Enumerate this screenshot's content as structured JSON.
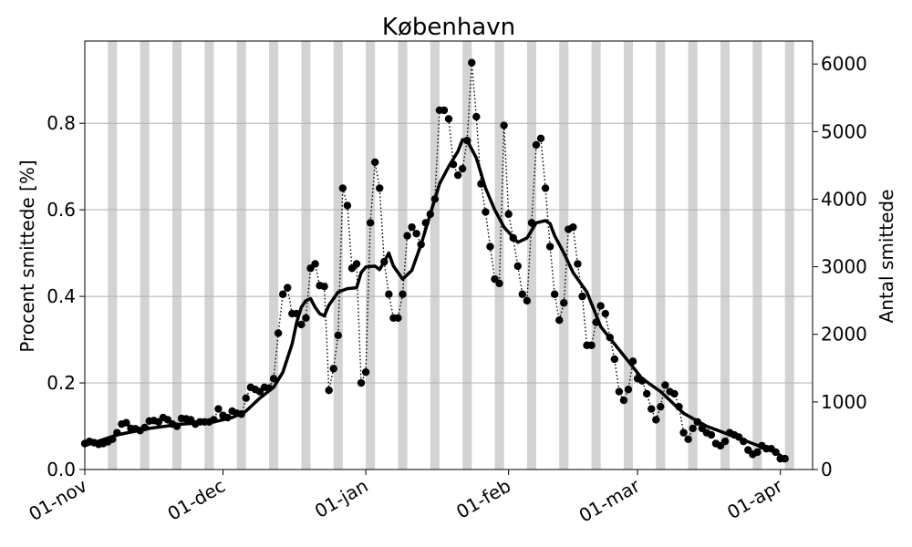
{
  "chart_data": {
    "type": "line",
    "title": "København",
    "ylabel": "Procent smittede [%]",
    "ylabel_right": "Antal smittede",
    "x_start": "2021-11-01",
    "x_end": "2022-04-08",
    "ylim": [
      0,
      0.99
    ],
    "ylim_right": [
      0,
      6340
    ],
    "yticks": [
      0.0,
      0.2,
      0.4,
      0.6,
      0.8
    ],
    "ytick_labels": [
      "0.0",
      "0.2",
      "0.4",
      "0.6",
      "0.8"
    ],
    "yticks_right": [
      0,
      1000,
      2000,
      3000,
      4000,
      5000,
      6000
    ],
    "ytick_labels_right": [
      "0",
      "1000",
      "2000",
      "3000",
      "4000",
      "5000",
      "6000"
    ],
    "xticks": [
      "2021-11-01",
      "2021-12-01",
      "2022-01-01",
      "2022-02-01",
      "2022-03-01",
      "2022-04-01"
    ],
    "xtick_labels": [
      "01-nov",
      "01-dec",
      "01-jan",
      "01-feb",
      "01-mar",
      "01-apr"
    ],
    "grid": "horizontal",
    "weekend_bands": [
      "2021-11-06",
      "2021-11-13",
      "2021-11-20",
      "2021-11-27",
      "2021-12-04",
      "2021-12-11",
      "2021-12-18",
      "2021-12-25",
      "2022-01-01",
      "2022-01-08",
      "2022-01-15",
      "2022-01-22",
      "2022-01-29",
      "2022-02-05",
      "2022-02-12",
      "2022-02-19",
      "2022-02-26",
      "2022-03-05",
      "2022-03-12",
      "2022-03-19",
      "2022-03-26",
      "2022-04-02",
      "2022-04-09"
    ],
    "series": [
      {
        "style": "daily-points-dotted",
        "color": "#000000",
        "x": [
          "2021-11-01",
          "2021-11-02",
          "2021-11-03",
          "2021-11-04",
          "2021-11-05",
          "2021-11-06",
          "2021-11-07",
          "2021-11-08",
          "2021-11-09",
          "2021-11-10",
          "2021-11-11",
          "2021-11-12",
          "2021-11-13",
          "2021-11-14",
          "2021-11-15",
          "2021-11-16",
          "2021-11-17",
          "2021-11-18",
          "2021-11-19",
          "2021-11-20",
          "2021-11-21",
          "2021-11-22",
          "2021-11-23",
          "2021-11-24",
          "2021-11-25",
          "2021-11-26",
          "2021-11-27",
          "2021-11-28",
          "2021-11-29",
          "2021-11-30",
          "2021-12-01",
          "2021-12-02",
          "2021-12-03",
          "2021-12-04",
          "2021-12-05",
          "2021-12-06",
          "2021-12-07",
          "2021-12-08",
          "2021-12-09",
          "2021-12-10",
          "2021-12-11",
          "2021-12-12",
          "2021-12-13",
          "2021-12-14",
          "2021-12-15",
          "2021-12-16",
          "2021-12-17",
          "2021-12-18",
          "2021-12-19",
          "2021-12-20",
          "2021-12-21",
          "2021-12-22",
          "2021-12-23",
          "2021-12-24",
          "2021-12-25",
          "2021-12-26",
          "2021-12-27",
          "2021-12-28",
          "2021-12-29",
          "2021-12-30",
          "2021-12-31",
          "2022-01-01",
          "2022-01-02",
          "2022-01-03",
          "2022-01-04",
          "2022-01-05",
          "2022-01-06",
          "2022-01-07",
          "2022-01-08",
          "2022-01-09",
          "2022-01-10",
          "2022-01-11",
          "2022-01-12",
          "2022-01-13",
          "2022-01-14",
          "2022-01-15",
          "2022-01-16",
          "2022-01-17",
          "2022-01-18",
          "2022-01-19",
          "2022-01-20",
          "2022-01-21",
          "2022-01-22",
          "2022-01-23",
          "2022-01-24",
          "2022-01-25",
          "2022-01-26",
          "2022-01-27",
          "2022-01-28",
          "2022-01-29",
          "2022-01-30",
          "2022-01-31",
          "2022-02-01",
          "2022-02-02",
          "2022-02-03",
          "2022-02-04",
          "2022-02-05",
          "2022-02-06",
          "2022-02-07",
          "2022-02-08",
          "2022-02-09",
          "2022-02-10",
          "2022-02-11",
          "2022-02-12",
          "2022-02-13",
          "2022-02-14",
          "2022-02-15",
          "2022-02-16",
          "2022-02-17",
          "2022-02-18",
          "2022-02-19",
          "2022-02-20",
          "2022-02-21",
          "2022-02-22",
          "2022-02-23",
          "2022-02-24",
          "2022-02-25",
          "2022-02-26",
          "2022-02-27",
          "2022-02-28",
          "2022-03-01",
          "2022-03-02",
          "2022-03-03",
          "2022-03-04",
          "2022-03-05",
          "2022-03-06",
          "2022-03-07",
          "2022-03-08",
          "2022-03-09",
          "2022-03-10",
          "2022-03-11",
          "2022-03-12",
          "2022-03-13",
          "2022-03-14",
          "2022-03-15",
          "2022-03-16",
          "2022-03-17",
          "2022-03-18",
          "2022-03-19",
          "2022-03-20",
          "2022-03-21",
          "2022-03-22",
          "2022-03-23",
          "2022-03-24",
          "2022-03-25",
          "2022-03-26",
          "2022-03-27",
          "2022-03-28",
          "2022-03-29",
          "2022-03-30",
          "2022-03-31",
          "2022-04-01",
          "2022-04-02"
        ],
        "values": [
          0.06,
          0.065,
          0.062,
          0.058,
          0.06,
          0.064,
          0.07,
          0.085,
          0.105,
          0.108,
          0.095,
          0.094,
          0.09,
          0.097,
          0.112,
          0.113,
          0.11,
          0.12,
          0.115,
          0.105,
          0.1,
          0.118,
          0.117,
          0.115,
          0.105,
          0.11,
          0.11,
          0.11,
          0.115,
          0.14,
          0.125,
          0.12,
          0.135,
          0.13,
          0.128,
          0.165,
          0.19,
          0.185,
          0.18,
          0.19,
          0.188,
          0.21,
          0.315,
          0.405,
          0.42,
          0.36,
          0.36,
          0.335,
          0.35,
          0.465,
          0.475,
          0.425,
          0.423,
          0.183,
          0.233,
          0.31,
          0.65,
          0.61,
          0.465,
          0.475,
          0.2,
          0.225,
          0.57,
          0.71,
          0.65,
          0.48,
          0.405,
          0.35,
          0.35,
          0.405,
          0.54,
          0.56,
          0.545,
          0.52,
          0.57,
          0.59,
          0.625,
          0.83,
          0.83,
          0.81,
          0.705,
          0.68,
          0.695,
          0.76,
          0.94,
          0.815,
          0.66,
          0.595,
          0.515,
          0.44,
          0.43,
          0.795,
          0.59,
          0.535,
          0.47,
          0.405,
          0.39,
          0.57,
          0.75,
          0.765,
          0.65,
          0.515,
          0.405,
          0.345,
          0.385,
          0.555,
          0.56,
          0.475,
          0.4,
          0.287,
          0.287,
          0.34,
          0.378,
          0.36,
          0.305,
          0.255,
          0.18,
          0.16,
          0.185,
          0.25,
          0.21,
          0.205,
          0.175,
          0.14,
          0.115,
          0.145,
          0.195,
          0.18,
          0.175,
          0.145,
          0.085,
          0.07,
          0.095,
          0.11,
          0.095,
          0.085,
          0.08,
          0.06,
          0.055,
          0.065,
          0.085,
          0.08,
          0.075,
          0.065,
          0.045,
          0.035,
          0.04,
          0.055,
          0.048,
          0.048,
          0.04,
          0.025,
          0.025
        ]
      },
      {
        "style": "smoothed-solid",
        "color": "#000000",
        "x": [
          "2021-11-01",
          "2021-11-08",
          "2021-11-15",
          "2021-11-22",
          "2021-11-29",
          "2021-12-03",
          "2021-12-06",
          "2021-12-09",
          "2021-12-12",
          "2021-12-14",
          "2021-12-16",
          "2021-12-17",
          "2021-12-18",
          "2021-12-19",
          "2021-12-20",
          "2021-12-21",
          "2021-12-22",
          "2021-12-23",
          "2021-12-24",
          "2021-12-26",
          "2021-12-28",
          "2021-12-30",
          "2021-12-31",
          "2022-01-01",
          "2022-01-03",
          "2022-01-04",
          "2022-01-05",
          "2022-01-06",
          "2022-01-07",
          "2022-01-09",
          "2022-01-11",
          "2022-01-13",
          "2022-01-15",
          "2022-01-17",
          "2022-01-19",
          "2022-01-21",
          "2022-01-22",
          "2022-01-23",
          "2022-01-25",
          "2022-01-27",
          "2022-01-29",
          "2022-01-31",
          "2022-02-03",
          "2022-02-05",
          "2022-02-07",
          "2022-02-09",
          "2022-02-10",
          "2022-02-11",
          "2022-02-13",
          "2022-02-15",
          "2022-02-18",
          "2022-02-21",
          "2022-02-24",
          "2022-02-27",
          "2022-03-02",
          "2022-03-06",
          "2022-03-11",
          "2022-03-16",
          "2022-03-21",
          "2022-03-26",
          "2022-03-31",
          "2022-04-02"
        ],
        "values": [
          0.055,
          0.08,
          0.095,
          0.105,
          0.11,
          0.12,
          0.135,
          0.165,
          0.19,
          0.225,
          0.29,
          0.34,
          0.375,
          0.39,
          0.395,
          0.375,
          0.36,
          0.355,
          0.38,
          0.41,
          0.418,
          0.42,
          0.455,
          0.468,
          0.47,
          0.462,
          0.48,
          0.5,
          0.47,
          0.44,
          0.46,
          0.52,
          0.59,
          0.66,
          0.7,
          0.735,
          0.762,
          0.76,
          0.72,
          0.65,
          0.6,
          0.56,
          0.525,
          0.535,
          0.57,
          0.575,
          0.568,
          0.54,
          0.5,
          0.455,
          0.41,
          0.33,
          0.29,
          0.25,
          0.21,
          0.18,
          0.13,
          0.1,
          0.08,
          0.06,
          0.04,
          0.025
        ]
      }
    ]
  }
}
